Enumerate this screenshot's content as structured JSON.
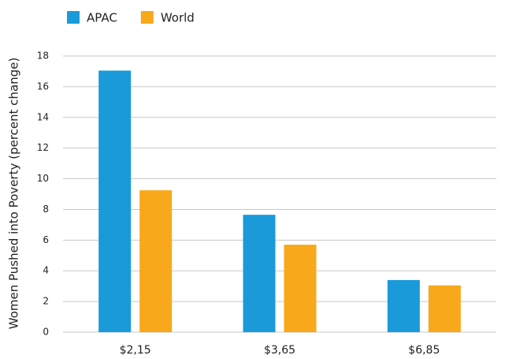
{
  "chart_data": {
    "type": "bar",
    "y_label": "Women Pushed into Poverty (percent change)",
    "categories": [
      "$2,15",
      "$3,65",
      "$6,85"
    ],
    "series": [
      {
        "name": "APAC",
        "color": "#1a9ad9",
        "values": [
          17.05,
          7.65,
          3.4
        ]
      },
      {
        "name": "World",
        "color": "#f8a81b",
        "values": [
          9.25,
          5.7,
          3.05
        ]
      }
    ],
    "ylim": [
      0,
      18
    ],
    "yticks": [
      0,
      2,
      4,
      6,
      8,
      10,
      12,
      14,
      16,
      18
    ],
    "grid": true,
    "legend": "top-left"
  }
}
